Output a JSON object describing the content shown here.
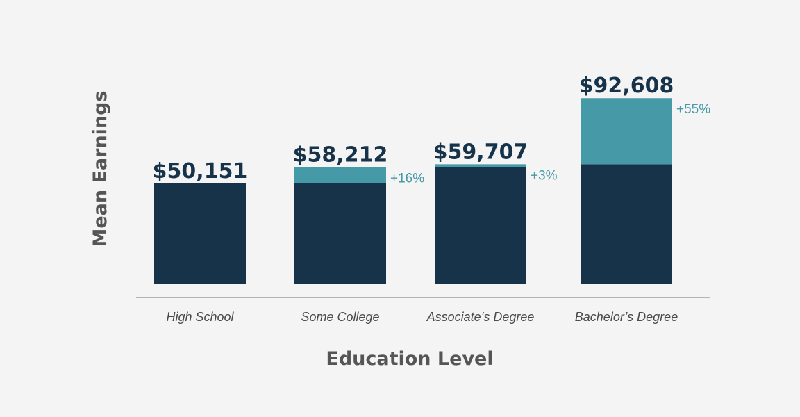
{
  "chart_data": {
    "type": "bar",
    "xlabel": "Education Level",
    "ylabel": "Mean Earnings",
    "categories": [
      "High School",
      "Some College",
      "Associate’s Degree",
      "Bachelor’s Degree"
    ],
    "values": [
      50151,
      58212,
      59707,
      92608
    ],
    "value_labels": [
      "$50,151",
      "$58,212",
      "$59,707",
      "$92,608"
    ],
    "increase_labels": [
      "",
      "+16%",
      "+3%",
      "+55%"
    ],
    "ylim": [
      0,
      100000
    ],
    "grid": false,
    "colors": {
      "base": "#17334a",
      "increase": "#4699a6",
      "axis": "#b5b5b5",
      "background": "#f4f4f4"
    }
  }
}
